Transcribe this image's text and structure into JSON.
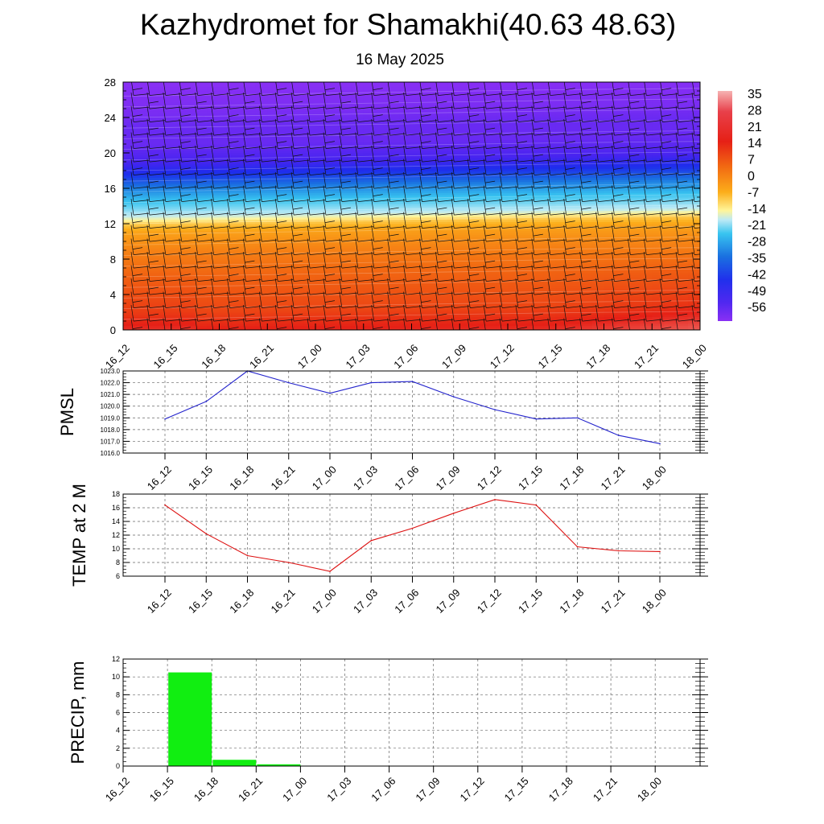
{
  "header": {
    "title": "Kazhydromet for Shamakhi(40.63 48.63)",
    "subtitle": "16 May 2025"
  },
  "time_labels": [
    "16_12",
    "16_15",
    "16_18",
    "16_21",
    "17_00",
    "17_03",
    "17_06",
    "17_09",
    "17_12",
    "17_15",
    "17_18",
    "17_21",
    "18_00"
  ],
  "colorbar": {
    "labels": [
      "35",
      "28",
      "21",
      "14",
      "7",
      "0",
      "-7",
      "-14",
      "-21",
      "-28",
      "-35",
      "-42",
      "-49",
      "-56"
    ]
  },
  "chart_data": [
    {
      "type": "heatmap",
      "title": "",
      "y_ticks": [
        "0",
        "4",
        "8",
        "12",
        "16",
        "20",
        "24",
        "28"
      ],
      "ylim": [
        0,
        28
      ],
      "x": [
        "16_12",
        "16_15",
        "16_18",
        "16_21",
        "17_00",
        "17_03",
        "17_06",
        "17_09",
        "17_12",
        "17_15",
        "17_18",
        "17_21",
        "18_00"
      ],
      "colorbar_range": [
        -60,
        38
      ],
      "grid": false
    },
    {
      "type": "line",
      "ylabel": "PMSL",
      "x": [
        "16_12",
        "16_15",
        "16_18",
        "16_21",
        "17_00",
        "17_03",
        "17_06",
        "17_09",
        "17_12",
        "17_15",
        "17_18",
        "17_21",
        "18_00"
      ],
      "values": [
        1018.9,
        1020.4,
        1023.0,
        1022.0,
        1021.1,
        1022.0,
        1022.1,
        1020.8,
        1019.7,
        1018.9,
        1019.0,
        1017.5,
        1016.8
      ],
      "y_ticks": [
        "1016.0",
        "1017.0",
        "1018.0",
        "1019.0",
        "1020.0",
        "1021.0",
        "1022.0",
        "1023.0"
      ],
      "ylim": [
        1016,
        1023
      ],
      "color": "#2222cc",
      "grid": true
    },
    {
      "type": "line",
      "ylabel": "TEMP at 2 M",
      "x": [
        "16_12",
        "16_15",
        "16_18",
        "16_21",
        "17_00",
        "17_03",
        "17_06",
        "17_09",
        "17_12",
        "17_15",
        "17_18",
        "17_21",
        "18_00"
      ],
      "values": [
        16.4,
        12.2,
        9.0,
        8.0,
        6.7,
        11.2,
        13.0,
        15.2,
        17.2,
        16.4,
        10.3,
        9.7,
        9.6
      ],
      "y_ticks": [
        "6",
        "8",
        "10",
        "12",
        "14",
        "16",
        "18"
      ],
      "ylim": [
        6,
        18
      ],
      "color": "#dd1111",
      "grid": true
    },
    {
      "type": "bar",
      "ylabel": "PRECIP, mm",
      "categories": [
        "16_12",
        "16_15",
        "16_18",
        "16_21",
        "17_00",
        "17_03",
        "17_06",
        "17_09",
        "17_12",
        "17_15",
        "17_18",
        "17_21",
        "18_00"
      ],
      "values": [
        0,
        10.5,
        0.7,
        0.2,
        0,
        0,
        0,
        0,
        0,
        0,
        0,
        0,
        0
      ],
      "y_ticks": [
        "0",
        "2",
        "4",
        "6",
        "8",
        "10",
        "12"
      ],
      "ylim": [
        0,
        12
      ],
      "color": "#11ee11",
      "grid": true
    }
  ]
}
